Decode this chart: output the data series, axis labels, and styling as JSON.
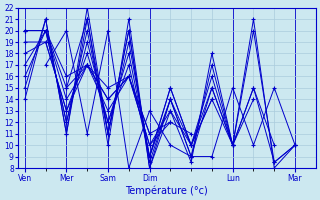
{
  "background_color": "#cce8f0",
  "grid_color": "#aaccdd",
  "line_color": "#0000cc",
  "xlabel": "Température (°c)",
  "xtick_labels": [
    "Ven",
    "Mer",
    "Sam",
    "Dim",
    "Lun",
    "Mar"
  ],
  "xtick_positions": [
    0,
    24,
    48,
    72,
    120,
    156
  ],
  "xlim": [
    -4,
    168
  ],
  "ylim": [
    8,
    22
  ],
  "series": [
    {
      "x": [
        0,
        12,
        24,
        36,
        48,
        60,
        72,
        84,
        96,
        108,
        120,
        132,
        144,
        156
      ],
      "y": [
        14,
        21,
        11,
        22,
        11,
        20,
        8,
        13,
        8.5,
        18,
        10,
        21,
        8,
        10
      ]
    },
    {
      "x": [
        0,
        12,
        24,
        36,
        48,
        60,
        72,
        84,
        96,
        108,
        120,
        132,
        144,
        156
      ],
      "y": [
        15,
        21,
        11,
        21,
        11,
        20,
        8.5,
        14,
        9,
        17,
        10,
        20,
        8.5,
        10
      ]
    },
    {
      "x": [
        0,
        12,
        24,
        36,
        48,
        60,
        72,
        84,
        96,
        108,
        120,
        132,
        144
      ],
      "y": [
        16,
        20,
        12,
        20,
        11,
        19,
        9,
        15,
        10,
        16,
        10,
        15,
        10
      ]
    },
    {
      "x": [
        0,
        12,
        24,
        36,
        48,
        60,
        72,
        84,
        96,
        108,
        120,
        132
      ],
      "y": [
        17,
        20,
        12,
        19,
        12,
        18,
        9,
        15,
        10,
        15,
        10,
        14
      ]
    },
    {
      "x": [
        0,
        12,
        24,
        36,
        48,
        60,
        72,
        84,
        96,
        108,
        120
      ],
      "y": [
        18,
        19,
        13,
        18,
        12,
        17,
        9,
        14,
        10,
        14,
        10
      ]
    },
    {
      "x": [
        0,
        12,
        24,
        36,
        48,
        60,
        72,
        84,
        96,
        108
      ],
      "y": [
        19,
        19,
        13,
        17,
        13,
        16,
        10,
        13,
        10,
        14
      ]
    },
    {
      "x": [
        0,
        12,
        24,
        36,
        48,
        60,
        72,
        84,
        96
      ],
      "y": [
        20,
        20,
        14,
        17,
        14,
        16,
        10,
        12,
        11
      ]
    },
    {
      "x": [
        0,
        12,
        24,
        36,
        48,
        60,
        72,
        84
      ],
      "y": [
        20,
        20,
        15,
        17,
        14,
        16,
        11,
        12
      ]
    },
    {
      "x": [
        0,
        12,
        24,
        36,
        48,
        60,
        72
      ],
      "y": [
        20,
        20,
        16,
        17,
        15,
        16,
        11
      ]
    },
    {
      "x": [
        12,
        24,
        36,
        48,
        60,
        72,
        84,
        96,
        108,
        120,
        132,
        144,
        156
      ],
      "y": [
        17,
        20,
        11,
        20,
        8,
        13,
        10,
        9,
        15,
        10,
        15,
        8.5,
        10
      ]
    },
    {
      "x": [
        24,
        36,
        48,
        60,
        72,
        84,
        96,
        108,
        120,
        132,
        144,
        156
      ],
      "y": [
        15,
        21,
        10,
        21,
        8,
        14,
        9,
        9,
        15,
        10,
        15,
        10
      ]
    }
  ]
}
